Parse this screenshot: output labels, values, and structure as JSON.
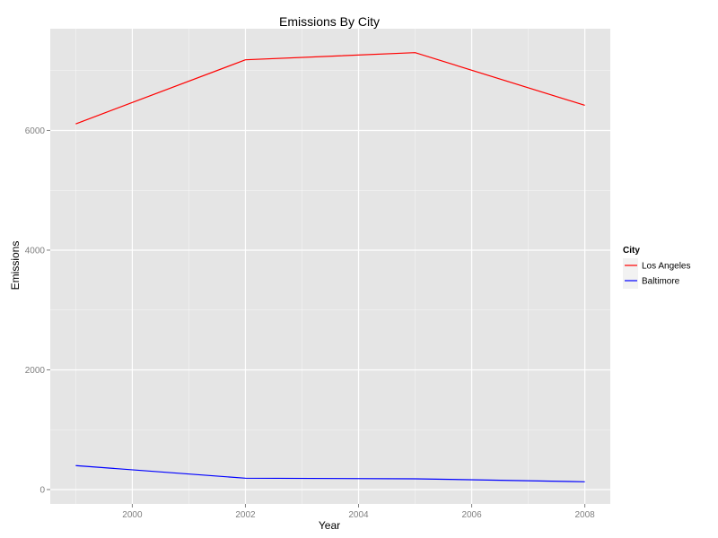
{
  "chart_data": {
    "type": "line",
    "title": "Emissions By City",
    "xlabel": "Year",
    "ylabel": "Emissions",
    "x": [
      1999,
      2002,
      2005,
      2008
    ],
    "xlim": [
      1998.55,
      2008.45
    ],
    "ylim": [
      -240,
      7700
    ],
    "xticks": [
      2000,
      2002,
      2004,
      2006,
      2008
    ],
    "yticks": [
      0,
      2000,
      4000,
      6000
    ],
    "grid": true,
    "legend": {
      "title": "City",
      "position": "right"
    },
    "series": [
      {
        "name": "Los Angeles",
        "color": "#ff0000",
        "values": [
          6110,
          7180,
          7300,
          6420
        ]
      },
      {
        "name": "Baltimore",
        "color": "#0000ff",
        "values": [
          400,
          190,
          180,
          130
        ]
      }
    ]
  },
  "style": {
    "panel_background": "#e5e5e5",
    "gridline_color": "#ffffff"
  }
}
